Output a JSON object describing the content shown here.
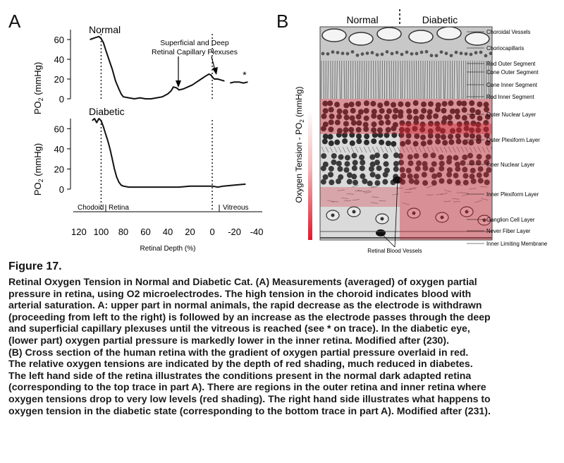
{
  "panel_a": {
    "letter": "A",
    "normal_label": "Normal",
    "diabetic_label": "Diabetic",
    "plexus_annotation_line1": "Superficial and Deep",
    "plexus_annotation_line2": "Retinal Capillary Plexuses",
    "star_annotation": "*",
    "y_axis_label": "PO",
    "y_axis_label_sub": "2",
    "y_axis_label_unit": " (mmHg)",
    "region_choroid": "Chodoid",
    "region_retina": "Retina",
    "region_vitreous": "Vitreous",
    "x_axis_label": "Retinal Depth (%)"
  },
  "panel_b": {
    "letter": "B",
    "header_normal": "Normal",
    "header_diabetic": "Diabetic",
    "side_label": "Oxygen Tension - PO",
    "side_label_sub": "2",
    "side_label_unit": " (mmHg)",
    "layers": [
      "Choroidal Vessels",
      "Choriocapillaris",
      "Rod Outer Segment",
      "Cone Outer Segment",
      "Cone Inner Segment",
      "Rod Inner Segment",
      "Outer Nuclear Layer",
      "Outer Plexiform Layer",
      "Inner Nuclear Layer",
      "Inner Plexiform Layer",
      "Ganglion Cell Layer",
      "Never Fiber Layer",
      "Inner Limiting Membrane"
    ],
    "vessels_label": "Retinal Blood Vessels"
  },
  "caption": {
    "title": "Figure 17.",
    "lines": [
      "Retinal Oxygen Tension in Normal and Diabetic Cat. (A) Measurements (averaged) of oxygen partial",
      "pressure in retina, using O2 microelectrodes. The high tension in the choroid indicates blood with",
      "arterial saturation. A: upper part in normal animals, the rapid decrease as the electrode is withdrawn",
      "(proceeding from left to the right) is followed by an increase as the electrode passes through the deep",
      "and superficial capillary plexuses until the vitreous is reached (see * on trace). In the diabetic eye,",
      "(lower part) oxygen partial pressure is markedly lower in the inner retina. Modified after (230).",
      "(B) Cross section of the human retina with the gradient of oxygen partial pressure overlaid in red.",
      "The relative oxygen tensions are indicated by the depth of red shading, much reduced in diabetes.",
      "The left hand side of the retina illustrates the conditions present in the normal dark adapted retina",
      "(corresponding to the top trace in part A). There are regions in the outer retina and inner retina where",
      "oxygen tensions drop to very low levels (red shading). The right hand side illustrates what happens to",
      "oxygen tension in the diabetic state (corresponding to the bottom trace in part A). Modified after (231)."
    ]
  },
  "chart_data": [
    {
      "type": "line",
      "title": "Normal",
      "xlabel": "Retinal Depth (%)",
      "ylabel": "PO2 (mmHg)",
      "xlim": [
        125,
        -45
      ],
      "ylim": [
        0,
        70
      ],
      "x_ticks": [
        120,
        100,
        80,
        60,
        40,
        20,
        0,
        -20,
        -40
      ],
      "y_ticks": [
        0,
        20,
        40,
        60
      ],
      "series": [
        {
          "x": [
            110,
            105,
            102,
            100,
            98,
            96,
            93,
            90,
            87,
            84,
            82,
            80,
            75,
            70,
            65,
            60,
            55,
            50,
            45,
            40,
            37,
            35,
            32,
            30,
            26,
            22,
            18,
            14,
            10,
            6,
            3,
            1,
            0,
            -2,
            -5,
            -8,
            -11
          ],
          "y": [
            60,
            62,
            63,
            61,
            57,
            50,
            40,
            30,
            18,
            10,
            5,
            2,
            1,
            0,
            1,
            0,
            0,
            1,
            2,
            5,
            8,
            12,
            11,
            9,
            10,
            12,
            14,
            17,
            20,
            23,
            25,
            24,
            22,
            20,
            20,
            19,
            18
          ]
        },
        {
          "x": [
            -16,
            -20,
            -24,
            -28,
            -32
          ],
          "y": [
            16,
            17,
            17,
            16,
            17
          ]
        }
      ]
    },
    {
      "type": "line",
      "title": "Diabetic",
      "xlabel": "Retinal Depth (%)",
      "ylabel": "PO2 (mmHg)",
      "xlim": [
        125,
        -45
      ],
      "ylim": [
        0,
        70
      ],
      "x_ticks": [
        120,
        100,
        80,
        60,
        40,
        20,
        0,
        -20,
        -40
      ],
      "y_ticks": [
        0,
        20,
        40,
        60
      ],
      "series": [
        {
          "x": [
            108,
            106,
            104,
            102,
            100,
            98,
            96,
            94,
            92,
            90,
            88,
            86,
            84,
            82,
            80,
            75,
            70,
            60,
            50,
            40,
            30,
            20,
            10,
            5,
            0,
            -5,
            -10,
            -20,
            -30
          ],
          "y": [
            68,
            70,
            66,
            70,
            68,
            62,
            55,
            48,
            40,
            30,
            20,
            12,
            7,
            4,
            3,
            2,
            2,
            2,
            2,
            2,
            2,
            3,
            3,
            3,
            3,
            2,
            3,
            4,
            5
          ]
        }
      ]
    }
  ]
}
